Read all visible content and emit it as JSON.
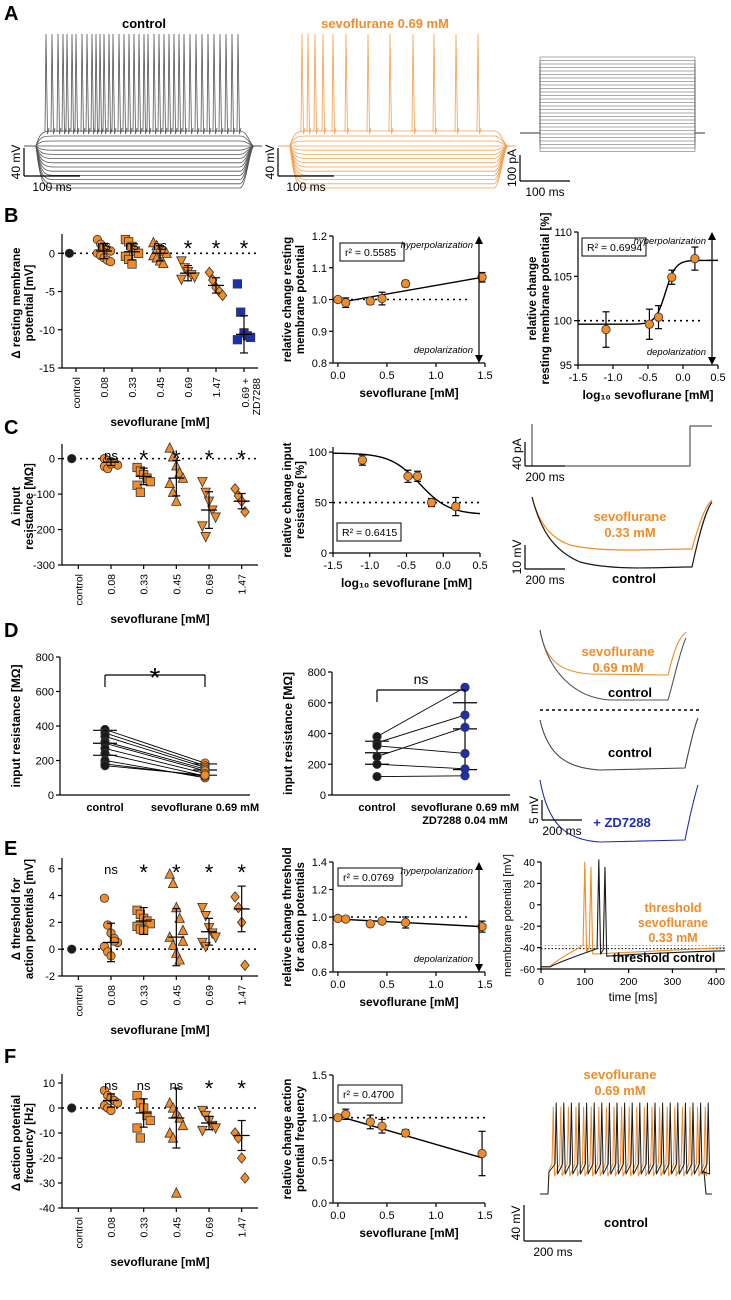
{
  "colors": {
    "orange": "#F28C28",
    "black": "#1a1a1a",
    "blue": "#1f2fb0",
    "trace": "#555555",
    "traceOrange": "#F5A050"
  },
  "panel_letters": [
    "A",
    "B",
    "C",
    "D",
    "E",
    "F"
  ],
  "common": {
    "sevo_mM": "sevoflurane [mM]",
    "log_sevo": "log₁₀ sevoflurane [mM]",
    "control": "control",
    "ns": "ns",
    "star": "*",
    "hyper": "hyperpolarization",
    "depol": "depolarization"
  },
  "A": {
    "control_title": "control",
    "sevo_title": "sevoflurane 0.69 mM",
    "scale_40mv": "40 mV",
    "scale_100ms": "100 ms",
    "scale_100pa": "100 pA"
  },
  "chart_data": [
    {
      "id": "B1",
      "type": "scatter",
      "ylabel": "Δ resting membrane potential [mV]",
      "xlabel": "sevoflurane [mM]",
      "categories": [
        "control",
        "0.08",
        "0.33",
        "0.45",
        "0.69",
        "1.47",
        "0.69 + ZD7288"
      ],
      "means": [
        0,
        0.3,
        0.2,
        0,
        -2.6,
        -4.2,
        -10.6
      ],
      "yticks": [
        0,
        -5,
        -10,
        -15
      ],
      "ylim": [
        -15,
        2
      ],
      "significance": [
        "",
        "ns",
        "ns",
        "ns",
        "*",
        "*",
        "*"
      ],
      "points": [
        [
          0
        ],
        [
          1.8,
          1.2,
          0.8,
          0.5,
          0.3,
          0,
          -0.3,
          -0.6,
          -0.9,
          -1.1
        ],
        [
          1.8,
          1.5,
          0.9,
          0.3,
          0,
          -0.4,
          -0.8,
          -1.4
        ],
        [
          1.4,
          1,
          0.6,
          0.3,
          0,
          -0.3,
          -0.6,
          -1,
          -1.3
        ],
        [
          -1,
          -1.9,
          -2.4,
          -2.8,
          -3.1,
          -3.4
        ],
        [
          -2.5,
          -3.5,
          -4.5,
          -5,
          -5.5
        ],
        [
          -4,
          -7.7,
          -10.4,
          -10.8,
          -11,
          -11.3
        ]
      ]
    },
    {
      "id": "B2",
      "type": "line",
      "ylabel": "relative change resting membrane potential",
      "xlabel": "sevoflurane [mM]",
      "x": [
        0,
        0.08,
        0.33,
        0.45,
        0.69,
        1.47
      ],
      "y": [
        1.0,
        0.99,
        0.995,
        1.003,
        1.05,
        1.07
      ],
      "err": [
        0.005,
        0.015,
        0.01,
        0.02,
        0.01,
        0.015
      ],
      "fit": [
        [
          0,
          0.99
        ],
        [
          1.47,
          1.07
        ]
      ],
      "r2": "r² = 0.5585",
      "yticks": [
        0.8,
        0.9,
        1.0,
        1.1,
        1.2
      ],
      "xticks": [
        0.0,
        0.5,
        1.0,
        1.5
      ],
      "ylim": [
        0.8,
        1.2
      ],
      "xlim": [
        -0.05,
        1.5
      ]
    },
    {
      "id": "B3",
      "type": "line",
      "ylabel": "relative change resting membrane potential [%]",
      "xlabel": "log₁₀ sevoflurane [mM]",
      "x": [
        -1.1,
        -0.48,
        -0.35,
        -0.16,
        0.17
      ],
      "y": [
        99,
        99.6,
        100.4,
        104.9,
        107
      ],
      "err": [
        2,
        1.7,
        1.3,
        0.8,
        1.3
      ],
      "r2": "R² = 0.6994",
      "yticks": [
        95,
        100,
        105,
        110
      ],
      "xticks": [
        -1.5,
        -1.0,
        -0.5,
        0.0,
        0.5
      ],
      "ylim": [
        95,
        110
      ],
      "xlim": [
        -1.5,
        0.5
      ]
    },
    {
      "id": "C1",
      "type": "scatter",
      "ylabel": "Δ input resistance [MΩ]",
      "xlabel": "sevoflurane [mM]",
      "categories": [
        "control",
        "0.08",
        "0.33",
        "0.45",
        "0.69",
        "1.47"
      ],
      "means": [
        0,
        -10,
        -50,
        -55,
        -145,
        -120
      ],
      "yticks": [
        0,
        -100,
        -200,
        -300
      ],
      "ylim": [
        -300,
        30
      ],
      "significance": [
        "",
        "ns",
        "*",
        "*",
        "*",
        "*"
      ],
      "points": [
        [
          0
        ],
        [
          0,
          -5,
          -8,
          -12,
          -18,
          -22,
          -28,
          -15
        ],
        [
          -25,
          -35,
          -45,
          -55,
          -65,
          -75,
          -95
        ],
        [
          30,
          5,
          -20,
          -40,
          -55,
          -70,
          -95,
          -120
        ],
        [
          -65,
          -95,
          -120,
          -145,
          -165,
          -190,
          -220
        ],
        [
          -85,
          -105,
          -120,
          -150
        ]
      ]
    },
    {
      "id": "C2",
      "type": "line",
      "ylabel": "relative change input resistance [%]",
      "xlabel": "log₁₀ sevoflurane [mM]",
      "x": [
        -1.1,
        -0.48,
        -0.35,
        -0.16,
        0.17
      ],
      "y": [
        92,
        76,
        76,
        50,
        46
      ],
      "err": [
        5,
        6,
        5,
        4,
        9
      ],
      "r2": "R² = 0.6415",
      "yticks": [
        0,
        50,
        100
      ],
      "xticks": [
        -1.5,
        -1.0,
        -0.5,
        0.0,
        0.5
      ],
      "ylim": [
        0,
        105
      ],
      "xlim": [
        -1.5,
        0.5
      ]
    },
    {
      "id": "D1",
      "type": "paired",
      "ylabel": "input resistance [MΩ]",
      "categories": [
        "control",
        "sevoflurane 0.69 mM"
      ],
      "yticks": [
        0,
        200,
        400,
        600,
        800
      ],
      "ylim": [
        0,
        800
      ],
      "significance": "*",
      "pairs": [
        [
          380,
          185
        ],
        [
          360,
          170
        ],
        [
          340,
          160
        ],
        [
          310,
          150
        ],
        [
          300,
          140
        ],
        [
          270,
          125
        ],
        [
          240,
          110
        ],
        [
          200,
          100
        ],
        [
          180,
          110
        ],
        [
          170,
          115
        ]
      ],
      "mean": [
        300,
        145
      ],
      "sd": [
        [
          230,
          375
        ],
        [
          115,
          180
        ]
      ]
    },
    {
      "id": "D2",
      "type": "paired",
      "ylabel": "input resistance [MΩ]",
      "categories": [
        "control",
        "sevoflurane 0.69 mM ZD7288 0.04 mM"
      ],
      "yticks": [
        0,
        200,
        400,
        600,
        800
      ],
      "ylim": [
        0,
        800
      ],
      "significance": "ns",
      "pairs": [
        [
          380,
          700
        ],
        [
          340,
          520
        ],
        [
          320,
          270
        ],
        [
          250,
          440
        ],
        [
          200,
          170
        ],
        [
          120,
          125
        ]
      ],
      "mean": [
        275,
        430
      ],
      "sd": [
        [
          200,
          350
        ],
        [
          165,
          600
        ]
      ]
    },
    {
      "id": "E1",
      "type": "scatter",
      "ylabel": "Δ threshold for action potentials [mV]",
      "xlabel": "sevoflurane [mM]",
      "categories": [
        "control",
        "0.08",
        "0.33",
        "0.45",
        "0.69",
        "1.47"
      ],
      "means": [
        0,
        0.5,
        2.1,
        0.9,
        1.3,
        3
      ],
      "yticks": [
        -2,
        0,
        2,
        4,
        6
      ],
      "ylim": [
        -2,
        6.5
      ],
      "significance": [
        "",
        "ns",
        "*",
        "*",
        "*",
        "*"
      ],
      "points": [
        [
          0
        ],
        [
          3.8,
          1.8,
          1.2,
          0.8,
          0.5,
          0.2,
          -0.2,
          -0.5,
          0.6
        ],
        [
          2.9,
          2.6,
          2.3,
          2.1,
          1.9,
          1.7,
          1.5,
          1.4
        ],
        [
          5.6,
          4.9,
          3.1,
          2.3,
          1.4,
          0.9,
          0.3,
          -0.3,
          -0.8,
          0.6
        ],
        [
          3.1,
          2.5,
          1.6,
          1.2,
          0.9,
          0.5,
          0.2
        ],
        [
          3.9,
          3.1,
          2,
          -1.2
        ]
      ]
    },
    {
      "id": "E2",
      "type": "line",
      "ylabel": "relative change threshold for action potentials",
      "xlabel": "sevoflurane [mM]",
      "x": [
        0,
        0.08,
        0.33,
        0.45,
        0.69,
        1.47
      ],
      "y": [
        0.99,
        0.985,
        0.95,
        0.97,
        0.96,
        0.93
      ],
      "err": [
        0.01,
        0.01,
        0.02,
        0.02,
        0.04,
        0.04
      ],
      "fit": [
        [
          0,
          0.985
        ],
        [
          1.47,
          0.93
        ]
      ],
      "r2": "r² = 0.0769",
      "yticks": [
        0.6,
        0.8,
        1.0,
        1.2,
        1.4
      ],
      "xticks": [
        0.0,
        0.5,
        1.0,
        1.5
      ],
      "ylim": [
        0.6,
        1.4
      ],
      "xlim": [
        -0.05,
        1.5
      ]
    },
    {
      "id": "F1",
      "type": "scatter",
      "ylabel": "Δ action potential frequency [Hz]",
      "xlabel": "sevoflurane [mM]",
      "categories": [
        "control",
        "0.08",
        "0.33",
        "0.45",
        "0.69",
        "1.47"
      ],
      "means": [
        0,
        3,
        -2,
        -4,
        -6,
        -11
      ],
      "yticks": [
        10,
        0,
        -10,
        -20,
        -30,
        -40
      ],
      "ylim": [
        -40,
        12
      ],
      "significance": [
        "",
        "ns",
        "ns",
        "ns",
        "*",
        "*"
      ],
      "points": [
        [
          0
        ],
        [
          7,
          5,
          4,
          3,
          2,
          1,
          0,
          -1
        ],
        [
          5,
          2,
          0,
          -3,
          -5,
          -8,
          -12
        ],
        [
          2,
          0,
          -2,
          -4,
          -7,
          -10,
          -12,
          -34
        ],
        [
          -1,
          -3,
          -5,
          -7,
          -8,
          -9
        ],
        [
          -10,
          -12,
          -20,
          -28
        ]
      ]
    },
    {
      "id": "F2",
      "type": "line",
      "ylabel": "relative change action potential frequency",
      "xlabel": "sevoflurane [mM]",
      "x": [
        0,
        0.08,
        0.33,
        0.45,
        0.69,
        1.47
      ],
      "y": [
        1.0,
        1.04,
        0.95,
        0.9,
        0.82,
        0.58
      ],
      "err": [
        0.02,
        0.06,
        0.08,
        0.08,
        0.04,
        0.26
      ],
      "fit": [
        [
          0,
          1.02
        ],
        [
          1.47,
          0.53
        ]
      ],
      "r2": "r² = 0.4700",
      "yticks": [
        0.0,
        0.5,
        1.0,
        1.5
      ],
      "xticks": [
        0.0,
        0.5,
        1.0,
        1.5
      ],
      "ylim": [
        0,
        1.5
      ],
      "xlim": [
        -0.05,
        1.5
      ]
    }
  ],
  "C": {
    "scale_40pa": "40 pA",
    "scale_200ms": "200 ms",
    "scale_10mv": "10 mV",
    "sevo_label_1": "sevoflurane",
    "sevo_label_2": "0.33 mM",
    "control": "control"
  },
  "D": {
    "sevo_label_1": "sevoflurane",
    "sevo_label_2": "0.69 mM",
    "control_1": "control",
    "control_2": "control",
    "zd": "+ ZD7288",
    "scale_5mv": "5 mV",
    "scale_200ms": "200 ms"
  },
  "E": {
    "ylabel": "membrane potential [mV]",
    "xlabel": "time [ms]",
    "yticks": [
      40,
      20,
      0,
      -20,
      -40,
      -60
    ],
    "xticks": [
      0,
      100,
      200,
      300,
      400
    ],
    "thr_sevo_1": "threshold",
    "thr_sevo_2": "sevoflurane",
    "thr_sevo_3": "0.33 mM",
    "thr_ctrl": "threshold control"
  },
  "F": {
    "sevo_label_1": "sevoflurane",
    "sevo_label_2": "0.69 mM",
    "control": "control",
    "scale_40mv": "40 mV",
    "scale_200ms": "200 ms"
  }
}
